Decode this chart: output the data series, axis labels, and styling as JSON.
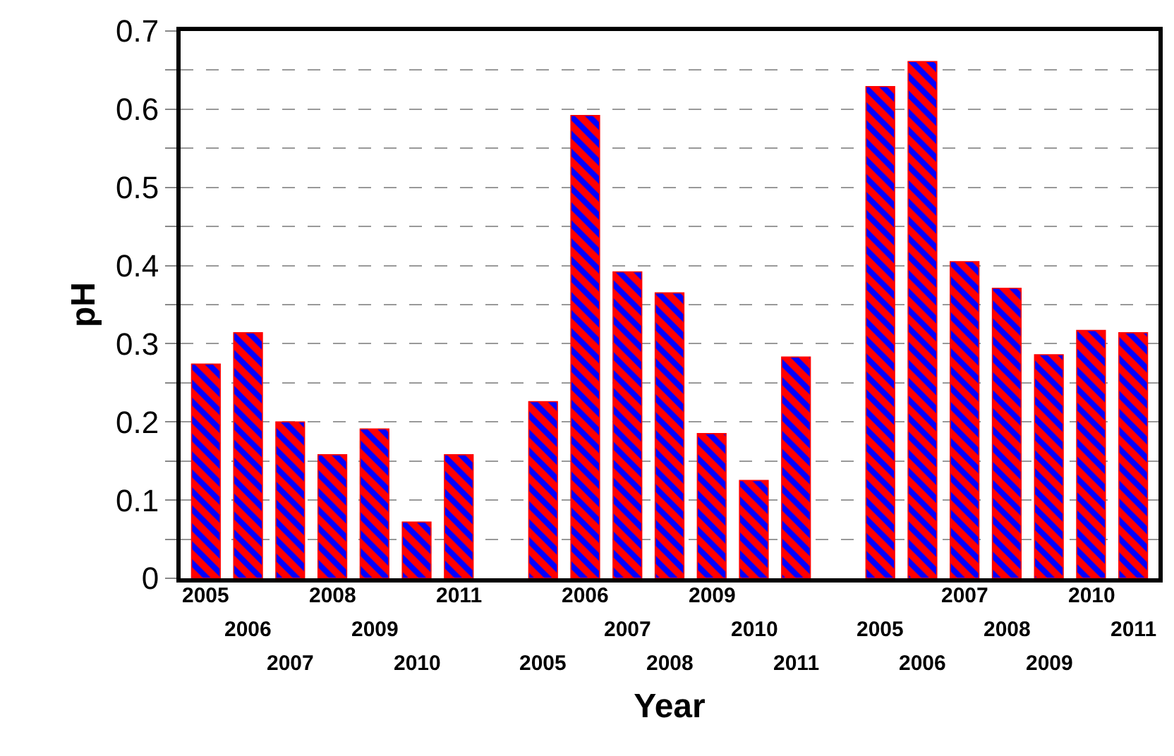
{
  "chart_data": {
    "type": "bar",
    "xlabel": "Year",
    "ylabel": "pH",
    "categories": [
      "2005",
      "2006",
      "2007",
      "2008",
      "2009",
      "2010",
      "2011",
      null,
      "2005",
      "2006",
      "2007",
      "2008",
      "2009",
      "2010",
      "2011",
      null,
      "2005",
      "2006",
      "2007",
      "2008",
      "2009",
      "2010",
      "2011"
    ],
    "values": [
      0.274,
      0.314,
      0.2,
      0.158,
      0.191,
      0.072,
      0.158,
      null,
      0.226,
      0.592,
      0.392,
      0.365,
      0.185,
      0.125,
      0.283,
      null,
      0.629,
      0.661,
      0.405,
      0.371,
      0.286,
      0.317,
      0.314
    ],
    "color": "#ff0000",
    "ylim": [
      0,
      0.7
    ],
    "yticks": [
      0,
      {
        "value": 0.05,
        "label": null
      },
      0.1,
      {
        "value": 0.15,
        "label": null
      },
      0.2,
      {
        "value": 0.25,
        "label": null
      },
      0.3,
      {
        "value": 0.35,
        "label": null
      },
      0.4,
      {
        "value": 0.45,
        "label": null
      },
      0.5,
      {
        "value": 0.55,
        "label": null
      },
      0.6,
      {
        "value": 0.65,
        "label": null
      },
      0.7
    ],
    "grid": "y"
  }
}
